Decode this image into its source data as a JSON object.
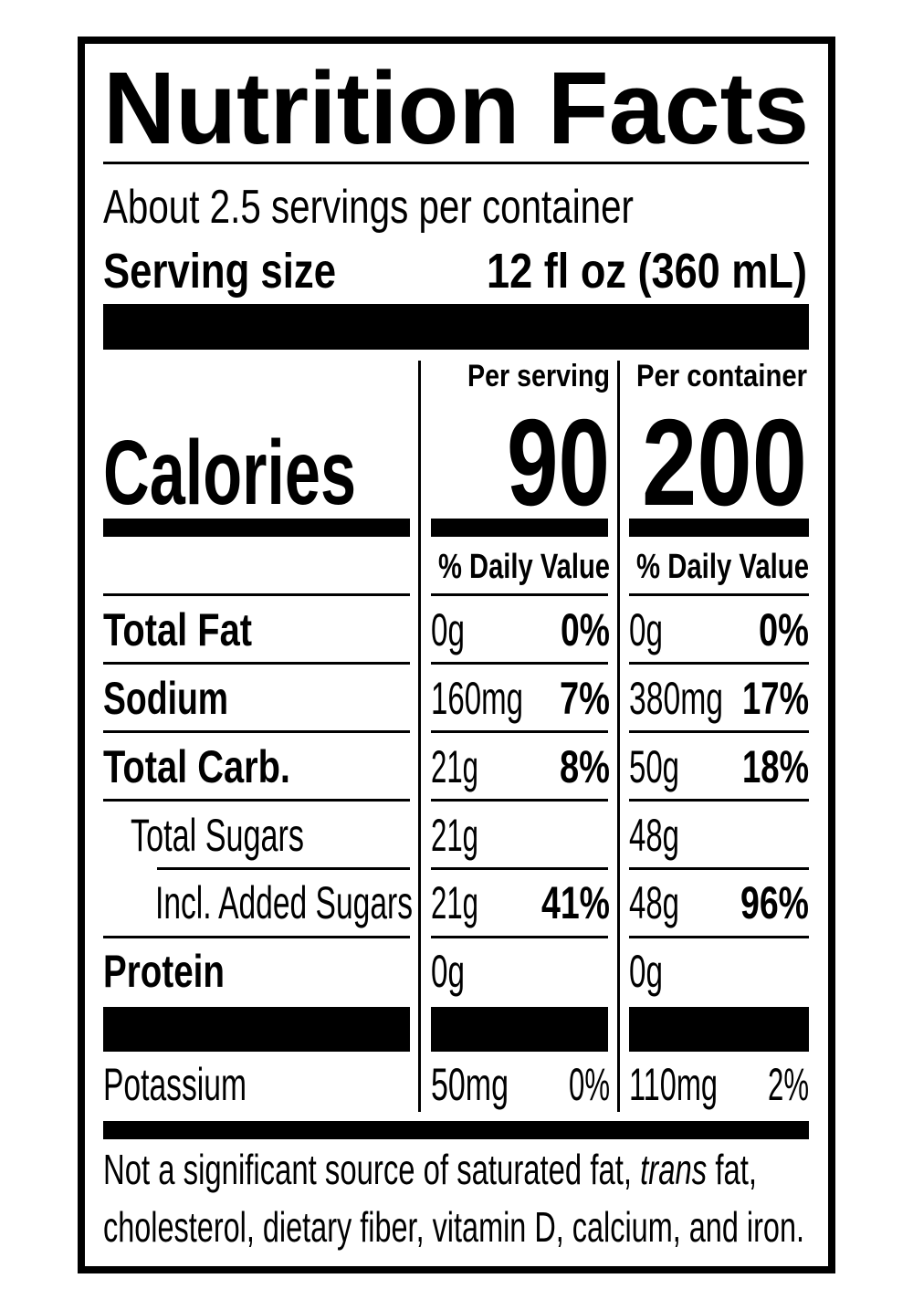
{
  "header": {
    "title": "Nutrition Facts",
    "servings_per_container": "About 2.5 servings per container",
    "serving_size_label": "Serving size",
    "serving_size": "12 fl oz (360 mL)"
  },
  "calories": {
    "label": "Calories",
    "columns": [
      {
        "heading": "Per serving",
        "value": "90"
      },
      {
        "heading": "Per container",
        "value": "200"
      }
    ]
  },
  "daily_value_headings": [
    "% Daily Value",
    "% Daily Value"
  ],
  "nutrients": [
    {
      "name": "Total Fat",
      "columns": [
        {
          "amount": "0g",
          "dv": "0%"
        },
        {
          "amount": "0g",
          "dv": "0%"
        }
      ]
    },
    {
      "name": "Sodium",
      "columns": [
        {
          "amount": "160mg",
          "dv": "7%"
        },
        {
          "amount": "380mg",
          "dv": "17%"
        }
      ]
    },
    {
      "name": "Total Carb.",
      "columns": [
        {
          "amount": "21g",
          "dv": "8%"
        },
        {
          "amount": "50g",
          "dv": "18%"
        }
      ]
    },
    {
      "name": "Total Sugars",
      "columns": [
        {
          "amount": "21g"
        },
        {
          "amount": "48g"
        }
      ]
    },
    {
      "name": "Incl. Added Sugars",
      "columns": [
        {
          "amount": "21g",
          "dv": "41%"
        },
        {
          "amount": "48g",
          "dv": "96%"
        }
      ]
    },
    {
      "name": "Protein",
      "columns": [
        {
          "amount": "0g"
        },
        {
          "amount": "0g"
        }
      ]
    },
    {
      "name": "Potassium",
      "columns": [
        {
          "amount": "50mg",
          "dv": "0%"
        },
        {
          "amount": "110mg",
          "dv": "2%"
        }
      ]
    }
  ],
  "footnote": {
    "line1": [
      "Not a significant source of saturated fat,",
      "trans",
      "fat,"
    ],
    "line2": "cholesterol, dietary fiber, vitamin D, calcium, and iron."
  }
}
